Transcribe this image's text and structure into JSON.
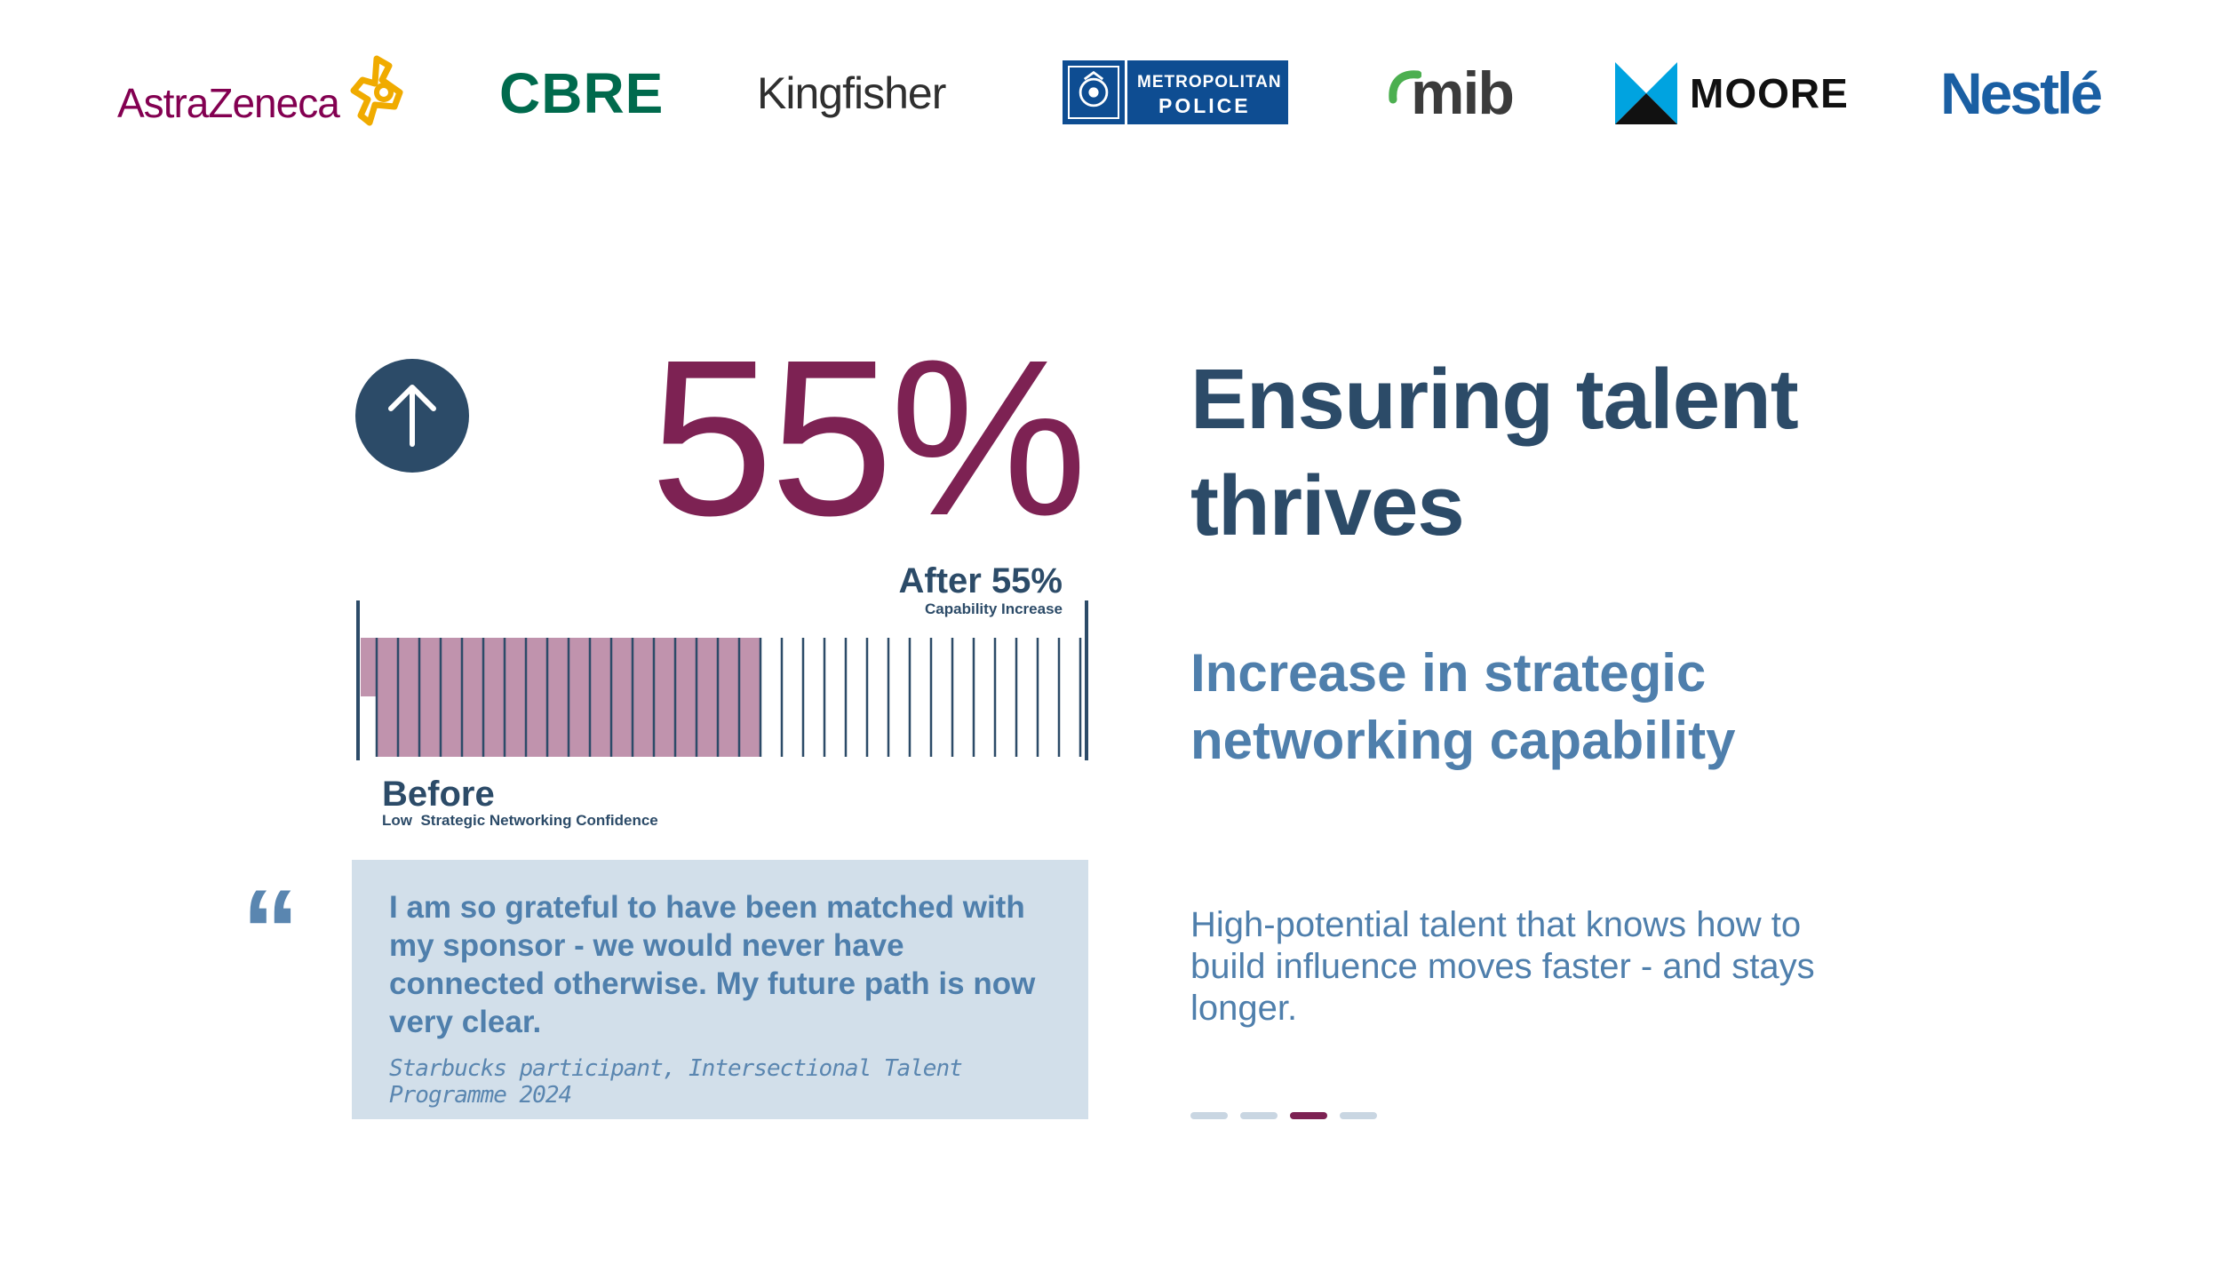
{
  "logos": [
    {
      "id": "astrazeneca",
      "text": "AstraZeneca",
      "color": "#830051"
    },
    {
      "id": "cbre",
      "text": "CBRE",
      "color": "#006a4d"
    },
    {
      "id": "kingfisher",
      "text": "Kingfisher",
      "color": "#2f2f2f"
    },
    {
      "id": "metropolitan-police",
      "line1": "METROPOLITAN",
      "line2": "POLICE",
      "color": "#0e4d92"
    },
    {
      "id": "mib",
      "text": "mib",
      "color": "#3b3b3b"
    },
    {
      "id": "moore",
      "text": "MOORE",
      "color": "#111111"
    },
    {
      "id": "nestle",
      "text": "Nestlé",
      "color": "#1a5fa3"
    }
  ],
  "stat": {
    "value": "55%",
    "after_label": "After 55%",
    "after_sub": "Capability Increase",
    "before_label": "Before",
    "before_sub": "Low  Strategic Networking Confidence"
  },
  "chart_data": {
    "type": "bar",
    "categories": [
      "Before",
      "After"
    ],
    "values": [
      0,
      55
    ],
    "unit": "%",
    "total_segments": 34,
    "filled_segments": 18,
    "xlabel": "",
    "ylabel": "",
    "xlim": [
      0,
      100
    ]
  },
  "quote": {
    "mark": "“",
    "text": "I am so grateful to have been matched with my sponsor - we would never have connected otherwise. My future path is now very clear.",
    "citation": "Starbucks participant, Intersectional Talent Programme 2024"
  },
  "headline": {
    "title": "Ensuring talent thrives",
    "subtitle": "Increase in strategic networking capability",
    "body": "High-potential talent that knows how to build influence moves faster - and stays longer."
  },
  "pager": {
    "count": 4,
    "active_index": 2
  },
  "colors": {
    "primary": "#2c4b68",
    "accent": "#7d2253",
    "secondary": "#4f7fac",
    "quote_bg": "#d2dfea",
    "bar_fill": "#c093ad"
  }
}
